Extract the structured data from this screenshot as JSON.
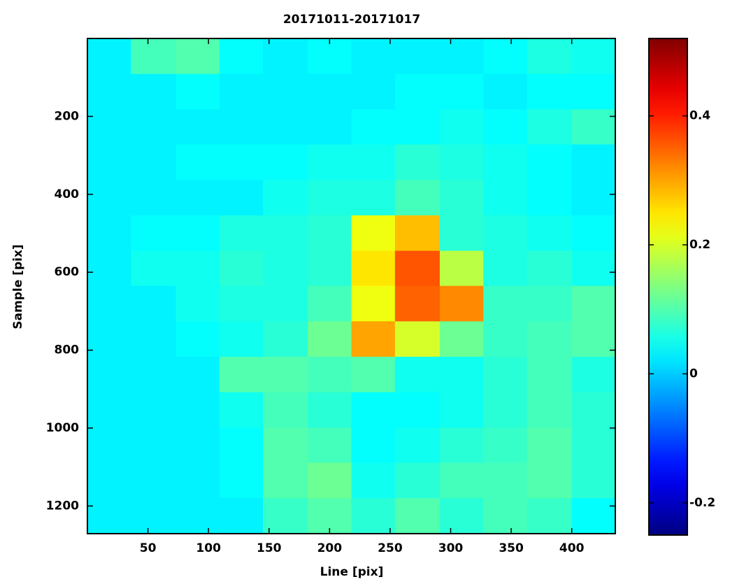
{
  "chart_data": {
    "type": "heatmap",
    "title": "20171011-20171017",
    "x_label": "Line [pix]",
    "y_label": "Sample [pix]",
    "xlim": [
      0,
      436
    ],
    "ylim": [
      0,
      1271
    ],
    "y_reversed": true,
    "xticks": [
      50,
      100,
      150,
      200,
      250,
      300,
      350,
      400
    ],
    "yticks": [
      200,
      400,
      600,
      800,
      1000,
      1200
    ],
    "colormap": "jet",
    "clim": [
      -0.25,
      0.52
    ],
    "cticks": [
      -0.2,
      0,
      0.2,
      0.4
    ],
    "x_edges": [
      0,
      36,
      73,
      109,
      145,
      182,
      218,
      254,
      291,
      327,
      363,
      400,
      436
    ],
    "y_edges": [
      0,
      91,
      182,
      272,
      363,
      454,
      545,
      635,
      726,
      817,
      908,
      999,
      1089,
      1180,
      1271
    ],
    "z": [
      [
        0.03,
        0.09,
        0.1,
        0.04,
        0.03,
        0.04,
        0.03,
        0.03,
        0.03,
        0.04,
        0.06,
        0.05
      ],
      [
        0.03,
        0.03,
        0.04,
        0.03,
        0.03,
        0.03,
        0.03,
        0.04,
        0.04,
        0.03,
        0.04,
        0.04
      ],
      [
        0.03,
        0.03,
        0.03,
        0.03,
        0.03,
        0.03,
        0.04,
        0.04,
        0.05,
        0.04,
        0.06,
        0.08
      ],
      [
        0.03,
        0.03,
        0.04,
        0.04,
        0.04,
        0.05,
        0.05,
        0.07,
        0.06,
        0.05,
        0.04,
        0.03
      ],
      [
        0.03,
        0.03,
        0.03,
        0.03,
        0.05,
        0.06,
        0.06,
        0.09,
        0.07,
        0.05,
        0.04,
        0.03
      ],
      [
        0.03,
        0.04,
        0.04,
        0.06,
        0.06,
        0.07,
        0.22,
        0.28,
        0.07,
        0.06,
        0.05,
        0.04
      ],
      [
        0.03,
        0.05,
        0.05,
        0.07,
        0.06,
        0.07,
        0.25,
        0.36,
        0.18,
        0.06,
        0.07,
        0.05
      ],
      [
        0.03,
        0.03,
        0.05,
        0.06,
        0.06,
        0.09,
        0.22,
        0.35,
        0.32,
        0.08,
        0.08,
        0.1
      ],
      [
        0.03,
        0.03,
        0.04,
        0.05,
        0.07,
        0.12,
        0.3,
        0.2,
        0.12,
        0.08,
        0.09,
        0.1
      ],
      [
        0.03,
        0.03,
        0.03,
        0.1,
        0.1,
        0.09,
        0.1,
        0.05,
        0.05,
        0.07,
        0.09,
        0.06
      ],
      [
        0.03,
        0.03,
        0.03,
        0.05,
        0.09,
        0.07,
        0.04,
        0.04,
        0.05,
        0.07,
        0.09,
        0.07
      ],
      [
        0.03,
        0.03,
        0.03,
        0.04,
        0.1,
        0.09,
        0.04,
        0.05,
        0.07,
        0.08,
        0.1,
        0.07
      ],
      [
        0.03,
        0.03,
        0.03,
        0.04,
        0.1,
        0.12,
        0.05,
        0.07,
        0.09,
        0.09,
        0.1,
        0.07
      ],
      [
        0.03,
        0.03,
        0.03,
        0.03,
        0.08,
        0.1,
        0.07,
        0.1,
        0.07,
        0.09,
        0.08,
        0.04
      ]
    ]
  }
}
